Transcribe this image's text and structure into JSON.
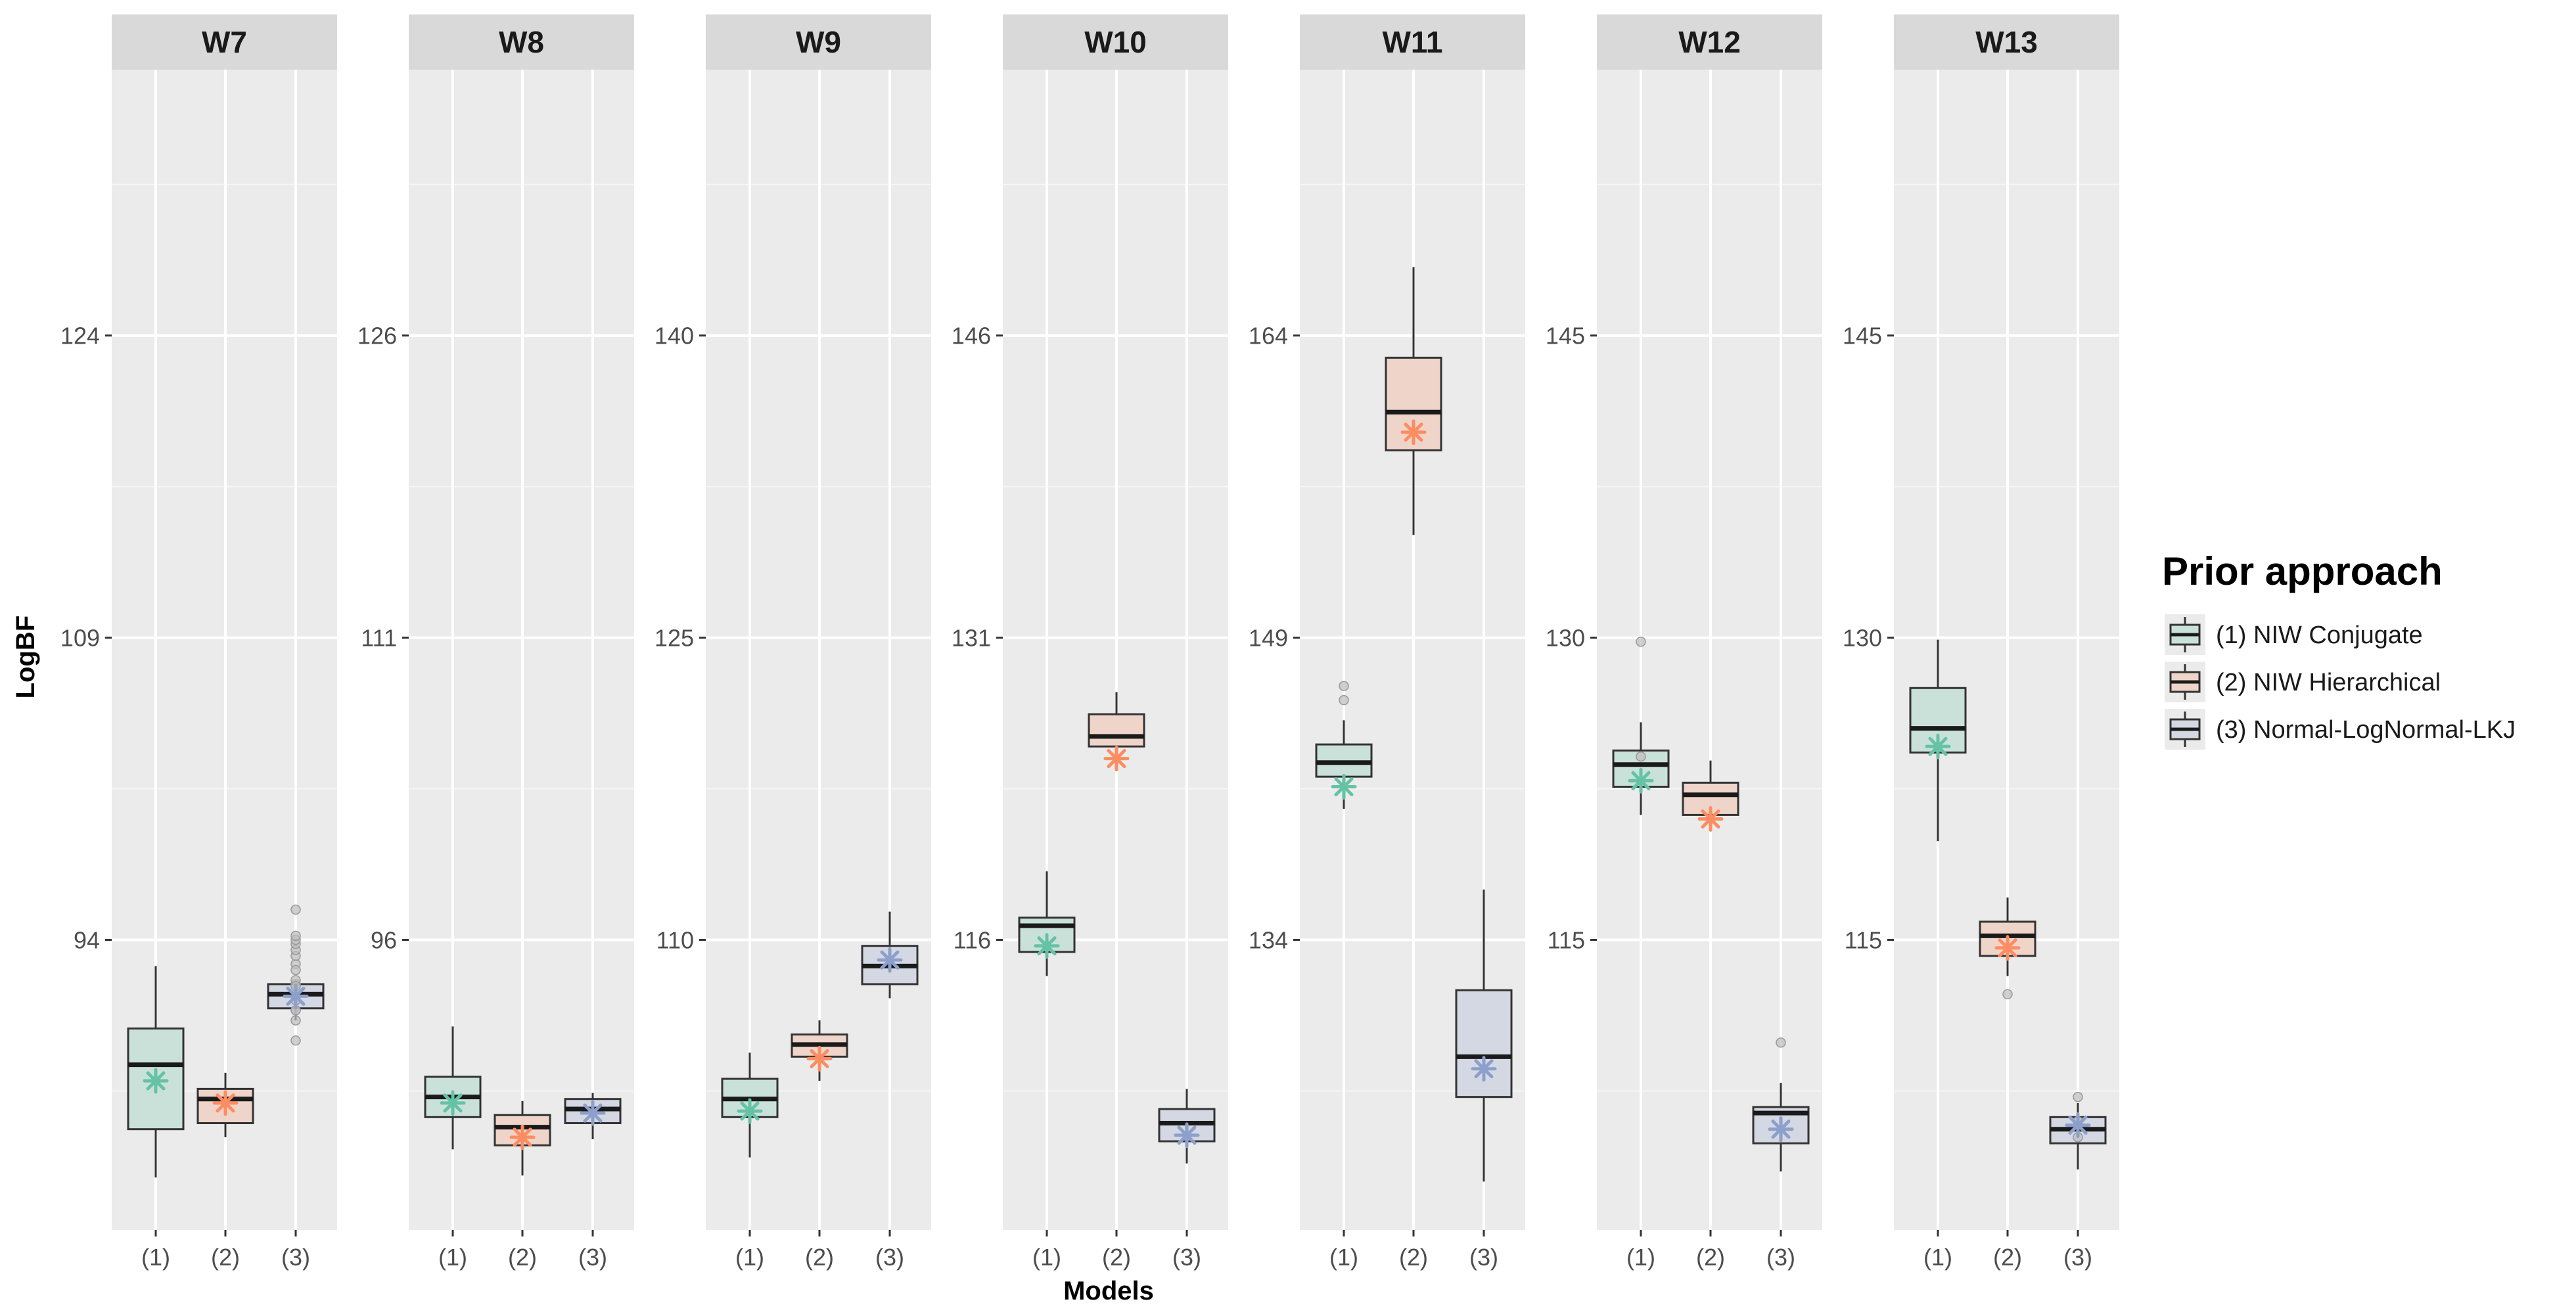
{
  "chart_data": {
    "type": "boxplot",
    "xlabel": "Models",
    "ylabel": "LogBF",
    "categories": [
      "(1)",
      "(2)",
      "(3)"
    ],
    "legend": {
      "title": "Prior approach",
      "position": "right",
      "entries": [
        {
          "label": "(1) NIW Conjugate",
          "color": "#66c2a5"
        },
        {
          "label": "(2) NIW Hierarchical",
          "color": "#fc8d62"
        },
        {
          "label": "(3) Normal-LogNormal-LKJ",
          "color": "#8da0cb"
        }
      ]
    },
    "facets": [
      {
        "title": "W7",
        "ylim": [
          79.6,
          137.2
        ],
        "ticks": [
          94,
          109,
          124
        ],
        "boxes": [
          {
            "q1": 84.6,
            "median": 87.8,
            "q3": 89.6,
            "lower": 82.2,
            "upper": 92.7,
            "mean": 87.0,
            "outliers": []
          },
          {
            "q1": 84.9,
            "median": 86.1,
            "q3": 86.6,
            "lower": 84.2,
            "upper": 87.4,
            "mean": 85.9,
            "outliers": []
          },
          {
            "q1": 90.6,
            "median": 91.3,
            "q3": 91.8,
            "lower": 90.0,
            "upper": 92.0,
            "mean": 91.2,
            "outliers": [
              91.8,
              92.0,
              89.0,
              91.7,
              90.5,
              91.0,
              90.0,
              90.5,
              92.8,
              92.5,
              93.2,
              93.5,
              93.8,
              94.0,
              94.2,
              95.5
            ]
          }
        ]
      },
      {
        "title": "W8",
        "ylim": [
          81.6,
          139.2
        ],
        "ticks": [
          96,
          111,
          126
        ],
        "boxes": [
          {
            "q1": 87.2,
            "median": 88.2,
            "q3": 89.2,
            "lower": 85.6,
            "upper": 91.7,
            "mean": 87.9,
            "outliers": []
          },
          {
            "q1": 85.8,
            "median": 86.7,
            "q3": 87.3,
            "lower": 84.3,
            "upper": 88.0,
            "mean": 86.2,
            "outliers": []
          },
          {
            "q1": 86.9,
            "median": 87.6,
            "q3": 88.1,
            "lower": 86.1,
            "upper": 88.4,
            "mean": 87.4,
            "outliers": []
          }
        ]
      },
      {
        "title": "W9",
        "ylim": [
          95.6,
          153.2
        ],
        "ticks": [
          110,
          125,
          140
        ],
        "boxes": [
          {
            "q1": 101.2,
            "median": 102.1,
            "q3": 103.1,
            "lower": 99.2,
            "upper": 104.4,
            "mean": 101.5,
            "outliers": []
          },
          {
            "q1": 104.2,
            "median": 104.8,
            "q3": 105.3,
            "lower": 103.0,
            "upper": 106.0,
            "mean": 104.1,
            "outliers": []
          },
          {
            "q1": 107.8,
            "median": 108.7,
            "q3": 109.7,
            "lower": 107.1,
            "upper": 111.4,
            "mean": 109.0,
            "outliers": []
          }
        ]
      },
      {
        "title": "W10",
        "ylim": [
          101.6,
          159.2
        ],
        "ticks": [
          116,
          131,
          146
        ],
        "boxes": [
          {
            "q1": 115.4,
            "median": 116.7,
            "q3": 117.1,
            "lower": 114.2,
            "upper": 119.4,
            "mean": 115.7,
            "outliers": []
          },
          {
            "q1": 125.6,
            "median": 126.1,
            "q3": 127.2,
            "lower": 124.6,
            "upper": 128.3,
            "mean": 125.0,
            "outliers": []
          },
          {
            "q1": 106.0,
            "median": 106.9,
            "q3": 107.6,
            "lower": 104.9,
            "upper": 108.6,
            "mean": 106.3,
            "outliers": []
          }
        ]
      },
      {
        "title": "W11",
        "ylim": [
          119.6,
          177.2
        ],
        "ticks": [
          134,
          149,
          164
        ],
        "boxes": [
          {
            "q1": 142.1,
            "median": 142.8,
            "q3": 143.7,
            "lower": 140.5,
            "upper": 144.9,
            "mean": 141.6,
            "outliers": [
              145.9,
              146.6
            ]
          },
          {
            "q1": 158.3,
            "median": 160.2,
            "q3": 162.9,
            "lower": 154.1,
            "upper": 167.4,
            "mean": 159.2,
            "outliers": []
          },
          {
            "q1": 126.2,
            "median": 128.2,
            "q3": 131.5,
            "lower": 122.0,
            "upper": 136.5,
            "mean": 127.6,
            "outliers": []
          }
        ]
      },
      {
        "title": "W12",
        "ylim": [
          100.6,
          158.2
        ],
        "ticks": [
          115,
          130,
          145
        ],
        "boxes": [
          {
            "q1": 122.6,
            "median": 123.7,
            "q3": 124.4,
            "lower": 121.2,
            "upper": 125.8,
            "mean": 122.9,
            "outliers": [
              129.8,
              124.1
            ]
          },
          {
            "q1": 121.2,
            "median": 122.2,
            "q3": 122.8,
            "lower": 120.5,
            "upper": 123.9,
            "mean": 121.0,
            "outliers": []
          },
          {
            "q1": 104.9,
            "median": 106.4,
            "q3": 106.7,
            "lower": 103.5,
            "upper": 107.9,
            "mean": 105.6,
            "outliers": [
              109.9
            ]
          }
        ]
      },
      {
        "title": "W13",
        "ylim": [
          100.6,
          158.2
        ],
        "ticks": [
          115,
          130,
          145
        ],
        "boxes": [
          {
            "q1": 124.3,
            "median": 125.5,
            "q3": 127.5,
            "lower": 119.9,
            "upper": 129.9,
            "mean": 124.6,
            "outliers": []
          },
          {
            "q1": 114.2,
            "median": 115.2,
            "q3": 115.9,
            "lower": 113.2,
            "upper": 117.1,
            "mean": 114.6,
            "outliers": [
              112.3
            ]
          },
          {
            "q1": 104.9,
            "median": 105.6,
            "q3": 106.2,
            "lower": 103.6,
            "upper": 106.9,
            "mean": 105.8,
            "outliers": [
              107.2,
              106.0,
              105.2
            ]
          }
        ]
      }
    ]
  }
}
